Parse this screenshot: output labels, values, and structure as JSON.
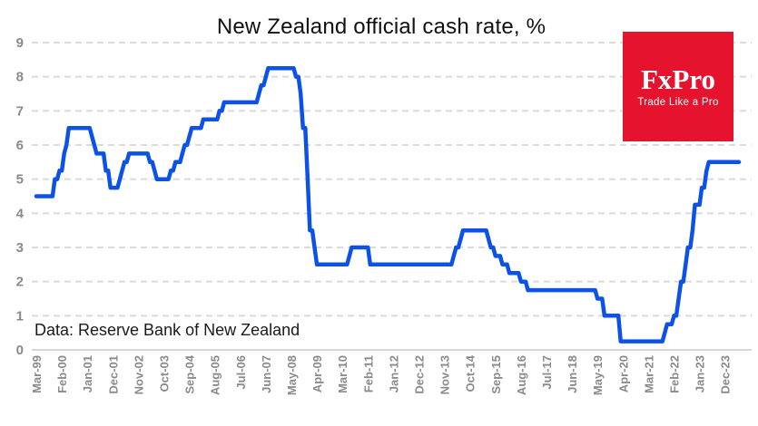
{
  "header": {
    "title": "New Zealand official cash rate, %"
  },
  "logo": {
    "name": "FxPro",
    "tagline": "Trade Like a Pro",
    "bg_color": "#E5132D",
    "text_color": "#ffffff"
  },
  "annotation": {
    "data_note": "Data: Reserve Bank of New Zealand"
  },
  "chart_data": {
    "type": "line",
    "title": "New Zealand official cash rate, %",
    "xlabel": "",
    "ylabel": "",
    "ylim": [
      0,
      9
    ],
    "yticks": [
      0,
      1,
      2,
      3,
      4,
      5,
      6,
      7,
      8,
      9
    ],
    "grid": "horizontal-dashed",
    "legend_position": "none",
    "line_color": "#0C52E8",
    "grid_color": "#DBDBDB",
    "axis_color": "#C9C9C9",
    "tick_label_color": "#8a8a8a",
    "x_frequency": "monthly",
    "x_start": "Mar-1999",
    "x_end": "Jun-2024",
    "x_tick_every_months": 11,
    "x_tick_labels": [
      "Mar-99",
      "Feb-00",
      "Jan-01",
      "Dec-01",
      "Nov-02",
      "Oct-03",
      "Sep-04",
      "Aug-05",
      "Jul-06",
      "Jun-07",
      "May-08",
      "Apr-09",
      "Mar-10",
      "Feb-11",
      "Jan-12",
      "Dec-12",
      "Nov-13",
      "Oct-14",
      "Sep-15",
      "Aug-16",
      "Jul-17",
      "Jun-18",
      "May-19",
      "Apr-20",
      "Mar-21",
      "Feb-22",
      "Jan-23",
      "Dec-23"
    ],
    "series": [
      {
        "name": "New Zealand official cash rate (%)",
        "values": [
          4.5,
          4.5,
          4.5,
          4.5,
          4.5,
          4.5,
          4.5,
          4.5,
          5,
          5,
          5.25,
          5.25,
          5.75,
          6,
          6.5,
          6.5,
          6.5,
          6.5,
          6.5,
          6.5,
          6.5,
          6.5,
          6.5,
          6.5,
          6.25,
          6,
          5.75,
          5.75,
          5.75,
          5.75,
          5.25,
          5.25,
          4.75,
          4.75,
          4.75,
          4.75,
          5,
          5.25,
          5.5,
          5.5,
          5.75,
          5.75,
          5.75,
          5.75,
          5.75,
          5.75,
          5.75,
          5.75,
          5.75,
          5.5,
          5.5,
          5.25,
          5,
          5,
          5,
          5,
          5,
          5,
          5.25,
          5.25,
          5.5,
          5.5,
          5.5,
          5.75,
          6,
          6,
          6.25,
          6.5,
          6.5,
          6.5,
          6.5,
          6.5,
          6.75,
          6.75,
          6.75,
          6.75,
          6.75,
          6.75,
          6.75,
          7,
          7,
          7.25,
          7.25,
          7.25,
          7.25,
          7.25,
          7.25,
          7.25,
          7.25,
          7.25,
          7.25,
          7.25,
          7.25,
          7.25,
          7.25,
          7.25,
          7.5,
          7.75,
          7.75,
          8,
          8.25,
          8.25,
          8.25,
          8.25,
          8.25,
          8.25,
          8.25,
          8.25,
          8.25,
          8.25,
          8.25,
          8.25,
          8,
          8,
          7.5,
          6.5,
          6.5,
          5,
          3.5,
          3.5,
          3,
          2.5,
          2.5,
          2.5,
          2.5,
          2.5,
          2.5,
          2.5,
          2.5,
          2.5,
          2.5,
          2.5,
          2.5,
          2.5,
          2.5,
          2.75,
          3,
          3,
          3,
          3,
          3,
          3,
          3,
          3,
          2.5,
          2.5,
          2.5,
          2.5,
          2.5,
          2.5,
          2.5,
          2.5,
          2.5,
          2.5,
          2.5,
          2.5,
          2.5,
          2.5,
          2.5,
          2.5,
          2.5,
          2.5,
          2.5,
          2.5,
          2.5,
          2.5,
          2.5,
          2.5,
          2.5,
          2.5,
          2.5,
          2.5,
          2.5,
          2.5,
          2.5,
          2.5,
          2.5,
          2.5,
          2.5,
          2.5,
          2.75,
          3,
          3,
          3.25,
          3.5,
          3.5,
          3.5,
          3.5,
          3.5,
          3.5,
          3.5,
          3.5,
          3.5,
          3.5,
          3.5,
          3.25,
          3,
          3,
          2.75,
          2.75,
          2.75,
          2.5,
          2.5,
          2.5,
          2.25,
          2.25,
          2.25,
          2.25,
          2.25,
          2,
          2,
          2,
          1.75,
          1.75,
          1.75,
          1.75,
          1.75,
          1.75,
          1.75,
          1.75,
          1.75,
          1.75,
          1.75,
          1.75,
          1.75,
          1.75,
          1.75,
          1.75,
          1.75,
          1.75,
          1.75,
          1.75,
          1.75,
          1.75,
          1.75,
          1.75,
          1.75,
          1.75,
          1.75,
          1.75,
          1.75,
          1.75,
          1.5,
          1.5,
          1.5,
          1,
          1,
          1,
          1,
          1,
          1,
          1,
          0.25,
          0.25,
          0.25,
          0.25,
          0.25,
          0.25,
          0.25,
          0.25,
          0.25,
          0.25,
          0.25,
          0.25,
          0.25,
          0.25,
          0.25,
          0.25,
          0.25,
          0.25,
          0.25,
          0.5,
          0.75,
          0.75,
          0.75,
          1,
          1,
          1.5,
          2,
          2,
          2.5,
          3,
          3,
          3.5,
          4.25,
          4.25,
          4.25,
          4.75,
          4.75,
          5.25,
          5.5,
          5.5,
          5.5,
          5.5,
          5.5,
          5.5,
          5.5,
          5.5,
          5.5,
          5.5,
          5.5,
          5.5,
          5.5,
          5.5
        ]
      }
    ],
    "annotation": "Data: Reserve Bank of New Zealand"
  }
}
